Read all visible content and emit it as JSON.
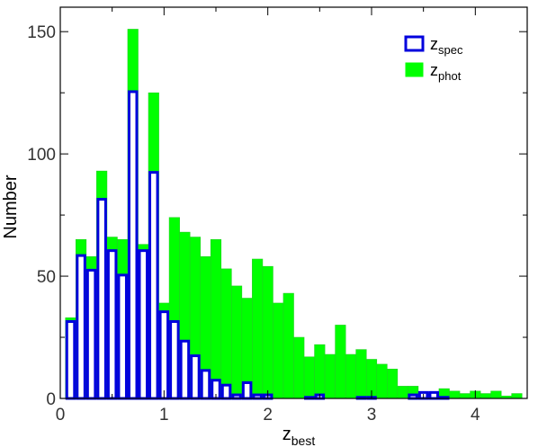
{
  "chart_data": {
    "type": "bar",
    "subtype": "overlaid-histogram",
    "xlabel": "z",
    "xlabel_sub": "best",
    "ylabel": "Number",
    "xlim": [
      0,
      4.5
    ],
    "ylim": [
      0,
      160
    ],
    "xticks": [
      0,
      1,
      2,
      3,
      4
    ],
    "xtick_labels": [
      "0",
      "1",
      "2",
      "3",
      "4"
    ],
    "yticks": [
      0,
      50,
      100,
      150
    ],
    "ytick_labels": [
      "0",
      "50",
      "100",
      "150"
    ],
    "bin_width": 0.1,
    "bin_starts": [
      0.05,
      0.15,
      0.25,
      0.35,
      0.45,
      0.55,
      0.65,
      0.75,
      0.85,
      0.95,
      1.05,
      1.15,
      1.25,
      1.35,
      1.45,
      1.55,
      1.65,
      1.75,
      1.85,
      1.95,
      2.05,
      2.15,
      2.25,
      2.35,
      2.45,
      2.55,
      2.65,
      2.75,
      2.85,
      2.95,
      3.05,
      3.15,
      3.25,
      3.35,
      3.45,
      3.55,
      3.65,
      3.75,
      3.85,
      3.95,
      4.05,
      4.15,
      4.25,
      4.35
    ],
    "series": [
      {
        "name": "z",
        "name_sub": "phot",
        "style": "filled",
        "color": "#00ff00",
        "values": [
          33,
          65,
          58,
          93,
          66,
          65,
          151,
          63,
          125,
          39,
          74,
          68,
          66,
          58,
          65,
          53,
          46,
          41,
          57,
          54,
          39,
          43,
          25,
          17,
          22,
          18,
          30,
          18,
          20,
          16,
          14,
          12,
          5,
          5,
          2,
          2,
          4,
          3,
          2,
          3,
          2,
          3,
          1,
          2
        ]
      },
      {
        "name": "z",
        "name_sub": "spec",
        "style": "outline",
        "color": "#0000dd",
        "values": [
          32,
          59,
          53,
          82,
          61,
          51,
          126,
          61,
          93,
          36,
          32,
          24,
          18,
          12,
          8,
          6,
          2,
          7,
          2,
          2,
          0,
          0,
          0,
          1,
          2,
          0,
          0,
          0,
          1,
          1,
          0,
          0,
          0,
          2,
          3,
          3,
          1,
          0,
          0,
          0,
          0,
          0,
          0,
          0
        ]
      }
    ],
    "legend_position": "top-right"
  }
}
